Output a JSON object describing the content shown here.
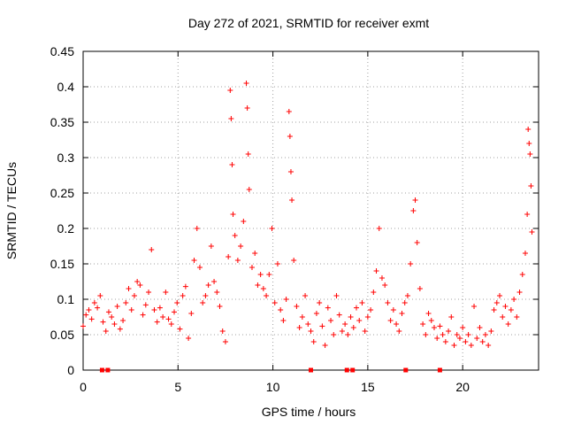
{
  "chart_data": {
    "type": "scatter",
    "title": "Day 272 of 2021, SRMTID for receiver exmt",
    "xlabel": "GPS time / hours",
    "ylabel": "SRMTID / TECUs",
    "xlim": [
      0,
      24
    ],
    "ylim": [
      0,
      0.45
    ],
    "xticks": [
      0,
      5,
      10,
      15,
      20
    ],
    "xtick_labels": [
      "0",
      "5",
      "10",
      "15",
      "20"
    ],
    "yticks": [
      0,
      0.05,
      0.1,
      0.15,
      0.2,
      0.25,
      0.3,
      0.35,
      0.4,
      0.45
    ],
    "ytick_labels": [
      "0",
      "0.05",
      "0.1",
      "0.15",
      "0.2",
      "0.25",
      "0.3",
      "0.35",
      "0.4",
      "0.45"
    ],
    "grid": true,
    "marker": "plus",
    "color": "#ff0000",
    "outage_markers_x": [
      1.0,
      1.3,
      12.0,
      13.9,
      14.2,
      17.0,
      18.8
    ],
    "series": [
      {
        "name": "SRMTID",
        "points": [
          [
            0.0,
            0.062
          ],
          [
            0.15,
            0.078
          ],
          [
            0.3,
            0.085
          ],
          [
            0.45,
            0.072
          ],
          [
            0.6,
            0.095
          ],
          [
            0.75,
            0.088
          ],
          [
            0.9,
            0.105
          ],
          [
            1.05,
            0.068
          ],
          [
            1.2,
            0.055
          ],
          [
            1.35,
            0.082
          ],
          [
            1.5,
            0.075
          ],
          [
            1.65,
            0.065
          ],
          [
            1.8,
            0.09
          ],
          [
            1.95,
            0.058
          ],
          [
            2.1,
            0.07
          ],
          [
            2.25,
            0.095
          ],
          [
            2.4,
            0.115
          ],
          [
            2.55,
            0.085
          ],
          [
            2.7,
            0.105
          ],
          [
            2.85,
            0.125
          ],
          [
            3.0,
            0.12
          ],
          [
            3.15,
            0.078
          ],
          [
            3.3,
            0.092
          ],
          [
            3.45,
            0.11
          ],
          [
            3.6,
            0.17
          ],
          [
            3.75,
            0.085
          ],
          [
            3.9,
            0.068
          ],
          [
            4.05,
            0.088
          ],
          [
            4.2,
            0.075
          ],
          [
            4.35,
            0.11
          ],
          [
            4.5,
            0.072
          ],
          [
            4.65,
            0.065
          ],
          [
            4.8,
            0.082
          ],
          [
            4.95,
            0.095
          ],
          [
            5.1,
            0.058
          ],
          [
            5.25,
            0.105
          ],
          [
            5.4,
            0.118
          ],
          [
            5.55,
            0.045
          ],
          [
            5.7,
            0.08
          ],
          [
            5.85,
            0.155
          ],
          [
            6.0,
            0.2
          ],
          [
            6.15,
            0.145
          ],
          [
            6.3,
            0.095
          ],
          [
            6.45,
            0.105
          ],
          [
            6.6,
            0.12
          ],
          [
            6.75,
            0.175
          ],
          [
            6.9,
            0.125
          ],
          [
            7.05,
            0.11
          ],
          [
            7.2,
            0.09
          ],
          [
            7.35,
            0.055
          ],
          [
            7.5,
            0.04
          ],
          [
            7.65,
            0.16
          ],
          [
            7.75,
            0.395
          ],
          [
            7.8,
            0.355
          ],
          [
            7.85,
            0.29
          ],
          [
            7.9,
            0.22
          ],
          [
            8.0,
            0.19
          ],
          [
            8.15,
            0.155
          ],
          [
            8.3,
            0.175
          ],
          [
            8.45,
            0.21
          ],
          [
            8.6,
            0.405
          ],
          [
            8.65,
            0.37
          ],
          [
            8.7,
            0.305
          ],
          [
            8.75,
            0.255
          ],
          [
            8.9,
            0.145
          ],
          [
            9.05,
            0.165
          ],
          [
            9.2,
            0.12
          ],
          [
            9.35,
            0.135
          ],
          [
            9.5,
            0.115
          ],
          [
            9.65,
            0.105
          ],
          [
            9.8,
            0.135
          ],
          [
            9.95,
            0.2
          ],
          [
            10.1,
            0.095
          ],
          [
            10.25,
            0.15
          ],
          [
            10.4,
            0.085
          ],
          [
            10.55,
            0.07
          ],
          [
            10.7,
            0.1
          ],
          [
            10.85,
            0.365
          ],
          [
            10.9,
            0.33
          ],
          [
            10.95,
            0.28
          ],
          [
            11.0,
            0.24
          ],
          [
            11.1,
            0.155
          ],
          [
            11.25,
            0.09
          ],
          [
            11.4,
            0.06
          ],
          [
            11.55,
            0.075
          ],
          [
            11.7,
            0.105
          ],
          [
            11.85,
            0.065
          ],
          [
            12.0,
            0.055
          ],
          [
            12.15,
            0.04
          ],
          [
            12.3,
            0.08
          ],
          [
            12.45,
            0.095
          ],
          [
            12.6,
            0.062
          ],
          [
            12.75,
            0.035
          ],
          [
            12.9,
            0.088
          ],
          [
            13.05,
            0.07
          ],
          [
            13.2,
            0.05
          ],
          [
            13.35,
            0.105
          ],
          [
            13.5,
            0.078
          ],
          [
            13.65,
            0.055
          ],
          [
            13.8,
            0.065
          ],
          [
            13.95,
            0.05
          ],
          [
            14.1,
            0.075
          ],
          [
            14.25,
            0.06
          ],
          [
            14.4,
            0.088
          ],
          [
            14.55,
            0.07
          ],
          [
            14.7,
            0.095
          ],
          [
            14.85,
            0.055
          ],
          [
            15.0,
            0.075
          ],
          [
            15.15,
            0.085
          ],
          [
            15.3,
            0.11
          ],
          [
            15.45,
            0.14
          ],
          [
            15.6,
            0.2
          ],
          [
            15.75,
            0.13
          ],
          [
            15.9,
            0.12
          ],
          [
            16.05,
            0.095
          ],
          [
            16.2,
            0.07
          ],
          [
            16.35,
            0.085
          ],
          [
            16.5,
            0.065
          ],
          [
            16.65,
            0.055
          ],
          [
            16.8,
            0.08
          ],
          [
            16.95,
            0.095
          ],
          [
            17.1,
            0.105
          ],
          [
            17.25,
            0.15
          ],
          [
            17.4,
            0.225
          ],
          [
            17.5,
            0.24
          ],
          [
            17.6,
            0.18
          ],
          [
            17.75,
            0.115
          ],
          [
            17.9,
            0.065
          ],
          [
            18.05,
            0.05
          ],
          [
            18.2,
            0.08
          ],
          [
            18.35,
            0.07
          ],
          [
            18.5,
            0.06
          ],
          [
            18.65,
            0.045
          ],
          [
            18.8,
            0.062
          ],
          [
            18.95,
            0.05
          ],
          [
            19.1,
            0.04
          ],
          [
            19.25,
            0.055
          ],
          [
            19.4,
            0.075
          ],
          [
            19.55,
            0.035
          ],
          [
            19.7,
            0.05
          ],
          [
            19.85,
            0.045
          ],
          [
            20.0,
            0.06
          ],
          [
            20.15,
            0.04
          ],
          [
            20.3,
            0.05
          ],
          [
            20.45,
            0.035
          ],
          [
            20.6,
            0.09
          ],
          [
            20.75,
            0.045
          ],
          [
            20.9,
            0.06
          ],
          [
            21.05,
            0.04
          ],
          [
            21.2,
            0.05
          ],
          [
            21.35,
            0.035
          ],
          [
            21.5,
            0.055
          ],
          [
            21.65,
            0.085
          ],
          [
            21.8,
            0.095
          ],
          [
            21.95,
            0.105
          ],
          [
            22.1,
            0.075
          ],
          [
            22.25,
            0.09
          ],
          [
            22.4,
            0.065
          ],
          [
            22.55,
            0.085
          ],
          [
            22.7,
            0.1
          ],
          [
            22.85,
            0.075
          ],
          [
            23.0,
            0.11
          ],
          [
            23.15,
            0.135
          ],
          [
            23.3,
            0.165
          ],
          [
            23.4,
            0.22
          ],
          [
            23.45,
            0.34
          ],
          [
            23.5,
            0.32
          ],
          [
            23.55,
            0.305
          ],
          [
            23.6,
            0.26
          ],
          [
            23.65,
            0.195
          ]
        ]
      }
    ]
  }
}
